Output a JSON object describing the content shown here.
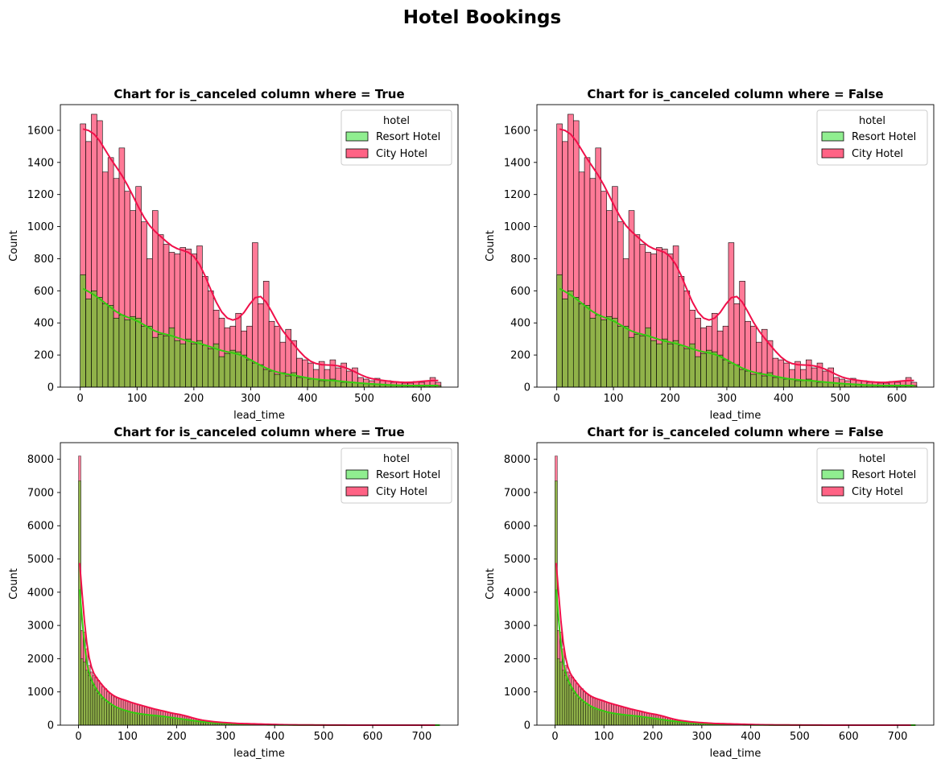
{
  "figure": {
    "title": "Hotel Bookings",
    "colors": {
      "resort": "#90ee90",
      "city": "#ff6385",
      "resort_kde": "#33cc11",
      "city_kde": "#f0104a",
      "overlap": "#90b249"
    }
  },
  "chart_data": [
    {
      "type": "histogram",
      "title": "Chart for is_canceled column where = True",
      "xlabel": "lead_time",
      "ylabel": "Count",
      "xlim": [
        -35,
        665
      ],
      "ylim": [
        0,
        1760
      ],
      "xticks": [
        0,
        100,
        200,
        300,
        400,
        500,
        600
      ],
      "yticks": [
        0,
        200,
        400,
        600,
        800,
        1000,
        1200,
        1400,
        1600
      ],
      "legend": {
        "title": "hotel",
        "position": "upper right",
        "entries": [
          "Resort Hotel",
          "City Hotel"
        ]
      },
      "bin_start": 0,
      "bin_width": 9.77,
      "series": [
        {
          "name": "Resort Hotel",
          "kde": true,
          "values": [
            700,
            550,
            600,
            560,
            520,
            510,
            430,
            450,
            420,
            440,
            430,
            380,
            380,
            310,
            330,
            320,
            370,
            290,
            270,
            300,
            270,
            290,
            260,
            240,
            270,
            190,
            210,
            230,
            220,
            200,
            170,
            150,
            140,
            110,
            100,
            80,
            90,
            70,
            90,
            60,
            60,
            50,
            50,
            40,
            40,
            50,
            40,
            30,
            30,
            30,
            25,
            20,
            20,
            20,
            15,
            15,
            10,
            10,
            10,
            10,
            10,
            10,
            10,
            10,
            10
          ]
        },
        {
          "name": "City Hotel",
          "kde": true,
          "values": [
            1640,
            1530,
            1700,
            1660,
            1340,
            1430,
            1300,
            1490,
            1220,
            1100,
            1250,
            1030,
            800,
            1100,
            950,
            890,
            840,
            830,
            870,
            860,
            830,
            880,
            690,
            600,
            480,
            430,
            370,
            380,
            460,
            350,
            380,
            900,
            520,
            660,
            410,
            380,
            280,
            360,
            290,
            180,
            170,
            150,
            110,
            160,
            110,
            170,
            120,
            150,
            100,
            120,
            60,
            50,
            40,
            55,
            40,
            40,
            30,
            30,
            25,
            25,
            35,
            30,
            40,
            60,
            30
          ]
        },
        {
          "name": "overlap",
          "values": []
        }
      ]
    },
    {
      "type": "histogram",
      "title": "Chart for is_canceled column where = False",
      "xlabel": "lead_time",
      "ylabel": "Count",
      "xlim": [
        -35,
        665
      ],
      "ylim": [
        0,
        1760
      ],
      "xticks": [
        0,
        100,
        200,
        300,
        400,
        500,
        600
      ],
      "yticks": [
        0,
        200,
        400,
        600,
        800,
        1000,
        1200,
        1400,
        1600
      ],
      "legend": {
        "title": "hotel",
        "position": "upper right",
        "entries": [
          "Resort Hotel",
          "City Hotel"
        ]
      },
      "bin_start": 0,
      "bin_width": 9.77,
      "series": [
        {
          "name": "Resort Hotel",
          "kde": true,
          "values": [
            700,
            550,
            600,
            560,
            520,
            510,
            430,
            450,
            420,
            440,
            430,
            380,
            380,
            310,
            330,
            320,
            370,
            290,
            270,
            300,
            270,
            290,
            260,
            240,
            270,
            190,
            210,
            230,
            220,
            200,
            170,
            150,
            140,
            110,
            100,
            80,
            90,
            70,
            90,
            60,
            60,
            50,
            50,
            40,
            40,
            50,
            40,
            30,
            30,
            30,
            25,
            20,
            20,
            20,
            15,
            15,
            10,
            10,
            10,
            10,
            10,
            10,
            10,
            10,
            10
          ]
        },
        {
          "name": "City Hotel",
          "kde": true,
          "values": [
            1640,
            1530,
            1700,
            1660,
            1340,
            1430,
            1300,
            1490,
            1220,
            1100,
            1250,
            1030,
            800,
            1100,
            950,
            890,
            840,
            830,
            870,
            860,
            830,
            880,
            690,
            600,
            480,
            430,
            370,
            380,
            460,
            350,
            380,
            900,
            520,
            660,
            410,
            380,
            280,
            360,
            290,
            180,
            170,
            150,
            110,
            160,
            110,
            170,
            120,
            150,
            100,
            120,
            60,
            50,
            40,
            55,
            40,
            40,
            30,
            30,
            25,
            25,
            35,
            30,
            40,
            60,
            30
          ]
        }
      ]
    },
    {
      "type": "histogram",
      "title": "Chart for is_canceled column where = True",
      "xlabel": "lead_time",
      "ylabel": "Count",
      "xlim": [
        -37,
        774
      ],
      "ylim": [
        0,
        8500
      ],
      "xticks": [
        0,
        100,
        200,
        300,
        400,
        500,
        600,
        700
      ],
      "yticks": [
        0,
        1000,
        2000,
        3000,
        4000,
        5000,
        6000,
        7000,
        8000
      ],
      "legend": {
        "title": "hotel",
        "position": "upper right",
        "entries": [
          "Resort Hotel",
          "City Hotel"
        ]
      },
      "bin_start": 0,
      "bin_width": 4.8,
      "series": [
        {
          "name": "Resort Hotel",
          "kde": true,
          "values": [
            7350,
            2000,
            1900,
            1650,
            1500,
            1350,
            1200,
            1050,
            950,
            900,
            800,
            750,
            700,
            650,
            600,
            550,
            520,
            500,
            470,
            450,
            430,
            410,
            390,
            370,
            360,
            350,
            340,
            330,
            320,
            310,
            300,
            300,
            290,
            280,
            280,
            270,
            260,
            250,
            240,
            230,
            220,
            210,
            200,
            190,
            180,
            170,
            160,
            150,
            140,
            130,
            120,
            110,
            100,
            95,
            90,
            85,
            80,
            75,
            70,
            65,
            60,
            55,
            50,
            45,
            40,
            38,
            36,
            34,
            32,
            30,
            28,
            26,
            24,
            22,
            20,
            18,
            16,
            14,
            12,
            10,
            10,
            9,
            8,
            8,
            7,
            7,
            6,
            6,
            5,
            5,
            5,
            4,
            4,
            4,
            3,
            3,
            3,
            3,
            2,
            2,
            2,
            2,
            2,
            2,
            2,
            1,
            1,
            1,
            1,
            1,
            1,
            1,
            1,
            1,
            1,
            1,
            1,
            1,
            1,
            1,
            1,
            1,
            1,
            1,
            1,
            1,
            1,
            1,
            1,
            1,
            1,
            1,
            1,
            1,
            1,
            1,
            1,
            1,
            1,
            1,
            1,
            1,
            1,
            1,
            1,
            1,
            1,
            1,
            1,
            1,
            1,
            1,
            1,
            1
          ]
        },
        {
          "name": "City Hotel",
          "kde": true,
          "values": [
            8100,
            2850,
            2800,
            2300,
            1800,
            1600,
            1500,
            1450,
            1350,
            1250,
            1150,
            1100,
            1000,
            950,
            900,
            850,
            820,
            800,
            780,
            760,
            740,
            700,
            680,
            660,
            640,
            620,
            600,
            580,
            560,
            540,
            520,
            500,
            480,
            460,
            450,
            440,
            420,
            400,
            380,
            360,
            350,
            340,
            330,
            320,
            300,
            280,
            260,
            240,
            220,
            200,
            180,
            160,
            150,
            140,
            130,
            120,
            110,
            100,
            95,
            90,
            85,
            80,
            75,
            70,
            65,
            60,
            55,
            50,
            50,
            48,
            46,
            44,
            42,
            40,
            38,
            36,
            34,
            32,
            30,
            28,
            26,
            24,
            22,
            20,
            18,
            16,
            14,
            12,
            10,
            10,
            9,
            8,
            8,
            7,
            7,
            6,
            6,
            5,
            5,
            5,
            4,
            4,
            4,
            3,
            3,
            3,
            3,
            2,
            2,
            2,
            2,
            2,
            2,
            2,
            1,
            1,
            1,
            1,
            1,
            1,
            1,
            1,
            1,
            1,
            1,
            1,
            1,
            1,
            1,
            1,
            1,
            1,
            1,
            1,
            1,
            1,
            1,
            1,
            1,
            1,
            1,
            1,
            1,
            1,
            1,
            1,
            1,
            1,
            1,
            1,
            1,
            1
          ]
        }
      ]
    },
    {
      "type": "histogram",
      "title": "Chart for is_canceled column where = False",
      "xlabel": "lead_time",
      "ylabel": "Count",
      "xlim": [
        -37,
        774
      ],
      "ylim": [
        0,
        8500
      ],
      "xticks": [
        0,
        100,
        200,
        300,
        400,
        500,
        600,
        700
      ],
      "yticks": [
        0,
        1000,
        2000,
        3000,
        4000,
        5000,
        6000,
        7000,
        8000
      ],
      "legend": {
        "title": "hotel",
        "position": "upper right",
        "entries": [
          "Resort Hotel",
          "City Hotel"
        ]
      },
      "bin_start": 0,
      "bin_width": 4.8,
      "series": [
        {
          "name": "Resort Hotel",
          "kde": true,
          "values": [
            7350,
            2000,
            1900,
            1650,
            1500,
            1350,
            1200,
            1050,
            950,
            900,
            800,
            750,
            700,
            650,
            600,
            550,
            520,
            500,
            470,
            450,
            430,
            410,
            390,
            370,
            360,
            350,
            340,
            330,
            320,
            310,
            300,
            300,
            290,
            280,
            280,
            270,
            260,
            250,
            240,
            230,
            220,
            210,
            200,
            190,
            180,
            170,
            160,
            150,
            140,
            130,
            120,
            110,
            100,
            95,
            90,
            85,
            80,
            75,
            70,
            65,
            60,
            55,
            50,
            45,
            40,
            38,
            36,
            34,
            32,
            30,
            28,
            26,
            24,
            22,
            20,
            18,
            16,
            14,
            12,
            10,
            10,
            9,
            8,
            8,
            7,
            7,
            6,
            6,
            5,
            5,
            5,
            4,
            4,
            4,
            3,
            3,
            3,
            3,
            2,
            2,
            2,
            2,
            2,
            2,
            2,
            1,
            1,
            1,
            1,
            1,
            1,
            1,
            1,
            1,
            1,
            1,
            1,
            1,
            1,
            1,
            1,
            1,
            1,
            1,
            1,
            1,
            1,
            1,
            1,
            1,
            1,
            1,
            1,
            1,
            1,
            1,
            1,
            1,
            1,
            1,
            1,
            1,
            1,
            1,
            1,
            1,
            1,
            1,
            1,
            1,
            1,
            1,
            1,
            1
          ]
        },
        {
          "name": "City Hotel",
          "kde": true,
          "values": [
            8100,
            2850,
            2800,
            2300,
            1800,
            1600,
            1500,
            1450,
            1350,
            1250,
            1150,
            1100,
            1000,
            950,
            900,
            850,
            820,
            800,
            780,
            760,
            740,
            700,
            680,
            660,
            640,
            620,
            600,
            580,
            560,
            540,
            520,
            500,
            480,
            460,
            450,
            440,
            420,
            400,
            380,
            360,
            350,
            340,
            330,
            320,
            300,
            280,
            260,
            240,
            220,
            200,
            180,
            160,
            150,
            140,
            130,
            120,
            110,
            100,
            95,
            90,
            85,
            80,
            75,
            70,
            65,
            60,
            55,
            50,
            50,
            48,
            46,
            44,
            42,
            40,
            38,
            36,
            34,
            32,
            30,
            28,
            26,
            24,
            22,
            20,
            18,
            16,
            14,
            12,
            10,
            10,
            9,
            8,
            8,
            7,
            7,
            6,
            6,
            5,
            5,
            5,
            4,
            4,
            4,
            3,
            3,
            3,
            3,
            2,
            2,
            2,
            2,
            2,
            2,
            2,
            1,
            1,
            1,
            1,
            1,
            1,
            1,
            1,
            1,
            1,
            1,
            1,
            1,
            1,
            1,
            1,
            1,
            1,
            1,
            1,
            1,
            1,
            1,
            1,
            1,
            1,
            1,
            1,
            1,
            1,
            1,
            1,
            1,
            1,
            1,
            1,
            1,
            1
          ]
        }
      ]
    }
  ]
}
